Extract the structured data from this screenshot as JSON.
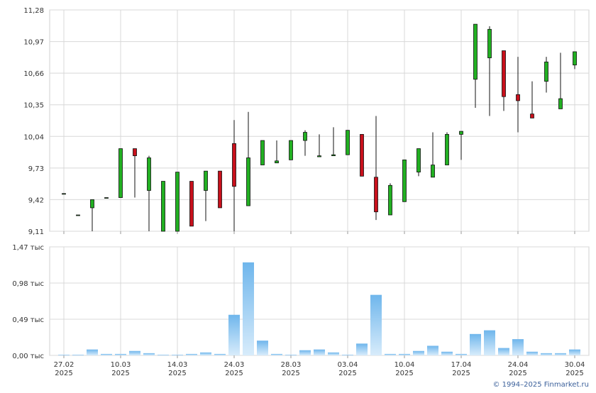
{
  "chart_data": [
    {
      "type": "candlestick",
      "open": [
        9.48,
        9.27,
        9.34,
        9.44,
        9.44,
        9.92,
        9.51,
        9.11,
        9.11,
        9.6,
        9.51,
        9.7,
        9.97,
        9.36,
        9.76,
        9.78,
        9.81,
        10.0,
        9.84,
        9.85,
        9.86,
        10.06,
        9.64,
        9.27,
        9.4,
        9.69,
        9.64,
        9.76,
        10.06,
        10.6,
        10.81,
        10.88,
        10.45,
        10.26,
        10.58,
        10.31,
        10.74
      ],
      "high": [
        9.48,
        9.27,
        9.42,
        9.44,
        9.92,
        9.92,
        9.85,
        9.6,
        9.69,
        9.6,
        9.7,
        9.7,
        10.2,
        10.28,
        10.0,
        10.0,
        10.0,
        10.1,
        10.06,
        10.13,
        10.1,
        10.06,
        10.24,
        9.58,
        9.81,
        9.92,
        10.08,
        10.08,
        10.09,
        11.14,
        11.12,
        10.88,
        10.82,
        10.58,
        10.82,
        10.86,
        10.87
      ],
      "low": [
        9.48,
        9.27,
        9.11,
        9.44,
        9.44,
        9.44,
        9.11,
        9.11,
        9.11,
        9.16,
        9.21,
        9.34,
        9.11,
        9.36,
        9.76,
        9.78,
        9.81,
        9.85,
        9.84,
        9.85,
        9.86,
        9.65,
        9.22,
        9.27,
        9.4,
        9.65,
        9.64,
        9.76,
        9.81,
        10.32,
        10.24,
        10.29,
        10.08,
        10.22,
        10.47,
        10.31,
        10.7
      ],
      "close": [
        9.48,
        9.27,
        9.42,
        9.44,
        9.92,
        9.85,
        9.83,
        9.6,
        9.69,
        9.16,
        9.7,
        9.34,
        9.55,
        9.83,
        10.0,
        9.8,
        10.0,
        10.08,
        9.85,
        9.86,
        10.1,
        9.65,
        9.3,
        9.56,
        9.81,
        9.92,
        9.76,
        10.06,
        10.09,
        11.14,
        11.09,
        10.43,
        10.39,
        10.22,
        10.77,
        10.41,
        10.87
      ],
      "up_color": "#22b022",
      "down_color": "#c8101c",
      "ylim": [
        9.11,
        11.28
      ],
      "yticks": [
        {
          "value": 9.11,
          "label": "9,11"
        },
        {
          "value": 9.42,
          "label": "9,42"
        },
        {
          "value": 9.73,
          "label": "9,73"
        },
        {
          "value": 10.04,
          "label": "10,04"
        },
        {
          "value": 10.35,
          "label": "10,35"
        },
        {
          "value": 10.66,
          "label": "10,66"
        },
        {
          "value": 10.97,
          "label": "10,97"
        },
        {
          "value": 11.28,
          "label": "11,28"
        }
      ],
      "grid": true
    },
    {
      "type": "bar",
      "categories": [
        [
          "27.02",
          "2025"
        ],
        null,
        null,
        null,
        [
          "10.03",
          "2025"
        ],
        null,
        null,
        null,
        [
          "14.03",
          "2025"
        ],
        null,
        null,
        null,
        [
          "24.03",
          "2025"
        ],
        null,
        null,
        null,
        [
          "28.03",
          "2025"
        ],
        null,
        null,
        null,
        [
          "03.04",
          "2025"
        ],
        null,
        null,
        null,
        [
          "10.04",
          "2025"
        ],
        null,
        null,
        null,
        [
          "17.04",
          "2025"
        ],
        null,
        null,
        null,
        [
          "24.04",
          "2025"
        ],
        null,
        null,
        null,
        [
          "30.04",
          "2025"
        ]
      ],
      "values": [
        10,
        10,
        80,
        20,
        20,
        60,
        30,
        10,
        10,
        20,
        40,
        20,
        550,
        1260,
        200,
        20,
        10,
        70,
        80,
        40,
        10,
        160,
        820,
        20,
        20,
        60,
        130,
        50,
        20,
        290,
        340,
        100,
        220,
        50,
        30,
        30,
        80
      ],
      "color": "#7fbfee",
      "ylim": [
        0,
        1470
      ],
      "yticks": [
        {
          "value": 0,
          "label": "0,00 тыс"
        },
        {
          "value": 490,
          "label": "0,49 тыс"
        },
        {
          "value": 980,
          "label": "0,98 тыс"
        },
        {
          "value": 1470,
          "label": "1,47 тыс"
        }
      ],
      "grid": true
    }
  ],
  "credit": "© 1994–2025 Finmarket.ru"
}
